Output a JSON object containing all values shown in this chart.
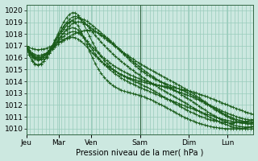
{
  "xlabel": "Pression niveau de la mer( hPa )",
  "ylim": [
    1009.5,
    1020.5
  ],
  "yticks": [
    1010,
    1011,
    1012,
    1013,
    1014,
    1015,
    1016,
    1017,
    1018,
    1019,
    1020
  ],
  "day_labels": [
    "Jeu",
    "Mar",
    "Ven",
    "Sam",
    "Dim",
    "Lun"
  ],
  "day_x": [
    0.0,
    1.0,
    2.0,
    3.5,
    5.0,
    6.2
  ],
  "xlim": [
    0.0,
    7.0
  ],
  "bg_color": "#cce8e0",
  "grid_color": "#99ccbb",
  "line_color": "#1a5c1a",
  "n_points": 80,
  "series": [
    {
      "x_nodes": [
        0,
        1.0,
        2.0,
        3.5,
        5.0,
        6.2,
        7.0
      ],
      "y_nodes": [
        1017.0,
        1017.3,
        1018.3,
        1015.0,
        1013.0,
        1011.0,
        1010.5
      ]
    },
    {
      "x_nodes": [
        0,
        1.0,
        1.5,
        2.0,
        3.5,
        5.0,
        6.2,
        7.0
      ],
      "y_nodes": [
        1017.0,
        1017.5,
        1019.0,
        1018.5,
        1015.5,
        1013.2,
        1011.1,
        1010.6
      ]
    },
    {
      "x_nodes": [
        0,
        1.0,
        1.5,
        2.0,
        3.5,
        5.0,
        6.2,
        7.0
      ],
      "y_nodes": [
        1017.0,
        1017.8,
        1019.3,
        1018.8,
        1015.2,
        1012.5,
        1010.5,
        1010.2
      ]
    },
    {
      "x_nodes": [
        0,
        1.0,
        1.5,
        2.0,
        3.5,
        5.0,
        6.2,
        7.0
      ],
      "y_nodes": [
        1017.0,
        1018.0,
        1019.5,
        1018.3,
        1014.5,
        1012.0,
        1010.3,
        1010.0
      ]
    },
    {
      "x_nodes": [
        0,
        1.0,
        1.5,
        2.0,
        3.5,
        5.0,
        6.2,
        7.0
      ],
      "y_nodes": [
        1017.0,
        1018.2,
        1019.8,
        1017.5,
        1013.8,
        1011.5,
        1010.5,
        1010.8
      ]
    },
    {
      "x_nodes": [
        0,
        1.0,
        1.5,
        2.0,
        3.5,
        5.0,
        6.2,
        7.0
      ],
      "y_nodes": [
        1017.0,
        1017.2,
        1017.7,
        1016.5,
        1014.0,
        1013.2,
        1012.0,
        1011.2
      ]
    },
    {
      "x_nodes": [
        0,
        1.0,
        1.5,
        2.0,
        3.5,
        5.0,
        6.2,
        7.0
      ],
      "y_nodes": [
        1017.0,
        1017.4,
        1018.2,
        1017.0,
        1014.2,
        1012.8,
        1011.3,
        1010.7
      ]
    },
    {
      "x_nodes": [
        0,
        1.0,
        1.5,
        2.0,
        3.5,
        5.0,
        6.2,
        7.0
      ],
      "y_nodes": [
        1017.0,
        1017.6,
        1018.5,
        1016.8,
        1013.5,
        1011.8,
        1010.7,
        1010.4
      ]
    },
    {
      "x_nodes": [
        0,
        1.0,
        1.5,
        2.0,
        3.5,
        5.0,
        6.2,
        7.0
      ],
      "y_nodes": [
        1017.0,
        1017.9,
        1019.0,
        1016.2,
        1012.8,
        1010.8,
        1010.0,
        1010.2
      ]
    }
  ]
}
